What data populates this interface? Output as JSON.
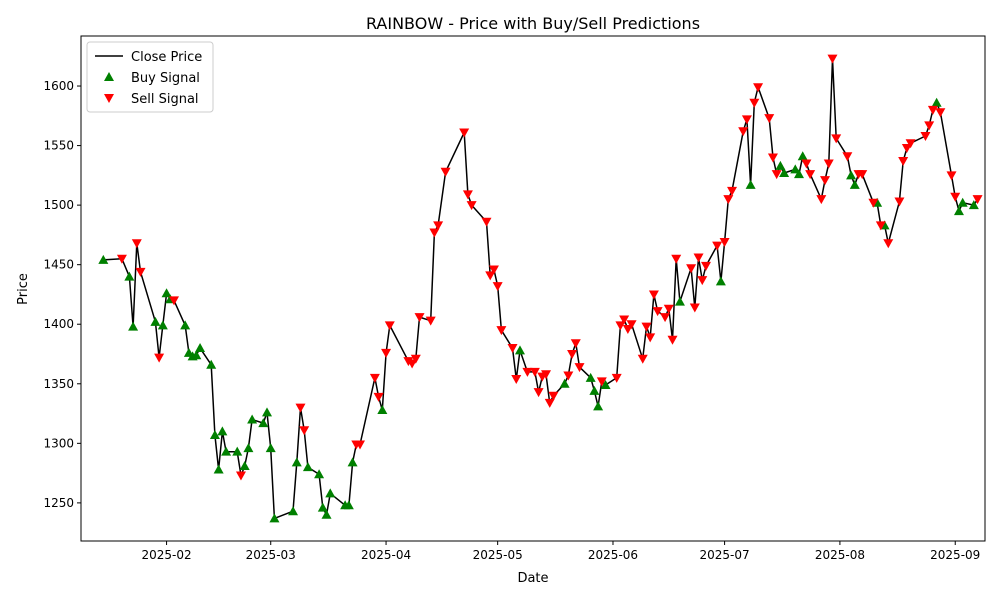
{
  "chart_data": {
    "type": "line",
    "title": "RAINBOW - Price with Buy/Sell Predictions",
    "xlabel": "Date",
    "ylabel": "Price",
    "xlim": [
      "2025-01-09",
      "2025-09-09"
    ],
    "ylim": [
      1218,
      1642
    ],
    "x_ticks": [
      "2025-02-01",
      "2025-03-01",
      "2025-04-01",
      "2025-05-01",
      "2025-06-01",
      "2025-07-01",
      "2025-08-01",
      "2025-09-01"
    ],
    "x_tick_labels": [
      "2025-02",
      "2025-03",
      "2025-04",
      "2025-05",
      "2025-06",
      "2025-07",
      "2025-08",
      "2025-09"
    ],
    "y_ticks": [
      1250,
      1300,
      1350,
      1400,
      1450,
      1500,
      1550,
      1600
    ],
    "legend": {
      "position": "top-left",
      "items": [
        {
          "label": "Close Price",
          "kind": "line",
          "color": "#000000"
        },
        {
          "label": "Buy Signal",
          "kind": "triangle-up",
          "color": "#008000"
        },
        {
          "label": "Sell Signal",
          "kind": "triangle-down",
          "color": "#ff0000"
        }
      ]
    },
    "close_series": [
      [
        "2025-01-15",
        1454
      ],
      [
        "2025-01-20",
        1455
      ],
      [
        "2025-01-22",
        1440
      ],
      [
        "2025-01-23",
        1398
      ],
      [
        "2025-01-24",
        1468
      ],
      [
        "2025-01-25",
        1444
      ],
      [
        "2025-01-29",
        1402
      ],
      [
        "2025-01-30",
        1372
      ],
      [
        "2025-01-31",
        1399
      ],
      [
        "2025-02-01",
        1426
      ],
      [
        "2025-02-02",
        1421
      ],
      [
        "2025-02-03",
        1420
      ],
      [
        "2025-02-06",
        1399
      ],
      [
        "2025-02-07",
        1376
      ],
      [
        "2025-02-08",
        1373
      ],
      [
        "2025-02-09",
        1374
      ],
      [
        "2025-02-10",
        1380
      ],
      [
        "2025-02-13",
        1366
      ],
      [
        "2025-02-14",
        1307
      ],
      [
        "2025-02-15",
        1278
      ],
      [
        "2025-02-16",
        1310
      ],
      [
        "2025-02-17",
        1293
      ],
      [
        "2025-02-20",
        1293
      ],
      [
        "2025-02-21",
        1273
      ],
      [
        "2025-02-22",
        1281
      ],
      [
        "2025-02-23",
        1296
      ],
      [
        "2025-02-24",
        1320
      ],
      [
        "2025-02-27",
        1317
      ],
      [
        "2025-02-28",
        1326
      ],
      [
        "2025-03-01",
        1296
      ],
      [
        "2025-03-02",
        1237
      ],
      [
        "2025-03-07",
        1243
      ],
      [
        "2025-03-08",
        1284
      ],
      [
        "2025-03-09",
        1330
      ],
      [
        "2025-03-10",
        1311
      ],
      [
        "2025-03-11",
        1280
      ],
      [
        "2025-03-14",
        1274
      ],
      [
        "2025-03-15",
        1246
      ],
      [
        "2025-03-16",
        1240
      ],
      [
        "2025-03-17",
        1258
      ],
      [
        "2025-03-21",
        1248
      ],
      [
        "2025-03-22",
        1248
      ],
      [
        "2025-03-23",
        1284
      ],
      [
        "2025-03-24",
        1299
      ],
      [
        "2025-03-25",
        1299
      ],
      [
        "2025-03-29",
        1355
      ],
      [
        "2025-03-30",
        1339
      ],
      [
        "2025-03-31",
        1328
      ],
      [
        "2025-04-01",
        1376
      ],
      [
        "2025-04-02",
        1399
      ],
      [
        "2025-04-07",
        1369
      ],
      [
        "2025-04-08",
        1367
      ],
      [
        "2025-04-09",
        1371
      ],
      [
        "2025-04-10",
        1406
      ],
      [
        "2025-04-13",
        1403
      ],
      [
        "2025-04-14",
        1477
      ],
      [
        "2025-04-15",
        1483
      ],
      [
        "2025-04-17",
        1528
      ],
      [
        "2025-04-22",
        1561
      ],
      [
        "2025-04-23",
        1509
      ],
      [
        "2025-04-24",
        1500
      ],
      [
        "2025-04-28",
        1486
      ],
      [
        "2025-04-29",
        1441
      ],
      [
        "2025-04-30",
        1446
      ],
      [
        "2025-05-01",
        1432
      ],
      [
        "2025-05-02",
        1395
      ],
      [
        "2025-05-05",
        1380
      ],
      [
        "2025-05-06",
        1354
      ],
      [
        "2025-05-07",
        1378
      ],
      [
        "2025-05-09",
        1360
      ],
      [
        "2025-05-11",
        1360
      ],
      [
        "2025-05-12",
        1343
      ],
      [
        "2025-05-13",
        1356
      ],
      [
        "2025-05-14",
        1358
      ],
      [
        "2025-05-15",
        1334
      ],
      [
        "2025-05-16",
        1340
      ],
      [
        "2025-05-19",
        1350
      ],
      [
        "2025-05-20",
        1357
      ],
      [
        "2025-05-21",
        1375
      ],
      [
        "2025-05-22",
        1384
      ],
      [
        "2025-05-23",
        1364
      ],
      [
        "2025-05-26",
        1355
      ],
      [
        "2025-05-27",
        1344
      ],
      [
        "2025-05-28",
        1331
      ],
      [
        "2025-05-29",
        1352
      ],
      [
        "2025-05-30",
        1349
      ],
      [
        "2025-06-02",
        1355
      ],
      [
        "2025-06-03",
        1399
      ],
      [
        "2025-06-04",
        1404
      ],
      [
        "2025-06-05",
        1396
      ],
      [
        "2025-06-06",
        1400
      ],
      [
        "2025-06-09",
        1371
      ],
      [
        "2025-06-10",
        1398
      ],
      [
        "2025-06-11",
        1389
      ],
      [
        "2025-06-12",
        1425
      ],
      [
        "2025-06-13",
        1411
      ],
      [
        "2025-06-15",
        1406
      ],
      [
        "2025-06-16",
        1413
      ],
      [
        "2025-06-17",
        1387
      ],
      [
        "2025-06-18",
        1455
      ],
      [
        "2025-06-19",
        1419
      ],
      [
        "2025-06-22",
        1447
      ],
      [
        "2025-06-23",
        1414
      ],
      [
        "2025-06-24",
        1456
      ],
      [
        "2025-06-25",
        1437
      ],
      [
        "2025-06-26",
        1449
      ],
      [
        "2025-06-29",
        1466
      ],
      [
        "2025-06-30",
        1436
      ],
      [
        "2025-07-01",
        1469
      ],
      [
        "2025-07-02",
        1505
      ],
      [
        "2025-07-03",
        1512
      ],
      [
        "2025-07-06",
        1562
      ],
      [
        "2025-07-07",
        1572
      ],
      [
        "2025-07-08",
        1517
      ],
      [
        "2025-07-09",
        1586
      ],
      [
        "2025-07-10",
        1599
      ],
      [
        "2025-07-13",
        1573
      ],
      [
        "2025-07-14",
        1540
      ],
      [
        "2025-07-15",
        1526
      ],
      [
        "2025-07-16",
        1533
      ],
      [
        "2025-07-17",
        1527
      ],
      [
        "2025-07-20",
        1530
      ],
      [
        "2025-07-21",
        1526
      ],
      [
        "2025-07-22",
        1541
      ],
      [
        "2025-07-23",
        1535
      ],
      [
        "2025-07-24",
        1526
      ],
      [
        "2025-07-27",
        1505
      ],
      [
        "2025-07-28",
        1521
      ],
      [
        "2025-07-29",
        1535
      ],
      [
        "2025-07-30",
        1623
      ],
      [
        "2025-07-31",
        1556
      ],
      [
        "2025-08-03",
        1541
      ],
      [
        "2025-08-04",
        1525
      ],
      [
        "2025-08-05",
        1517
      ],
      [
        "2025-08-06",
        1526
      ],
      [
        "2025-08-07",
        1526
      ],
      [
        "2025-08-10",
        1502
      ],
      [
        "2025-08-11",
        1502
      ],
      [
        "2025-08-12",
        1483
      ],
      [
        "2025-08-13",
        1483
      ],
      [
        "2025-08-14",
        1468
      ],
      [
        "2025-08-17",
        1503
      ],
      [
        "2025-08-18",
        1537
      ],
      [
        "2025-08-19",
        1548
      ],
      [
        "2025-08-20",
        1552
      ],
      [
        "2025-08-24",
        1558
      ],
      [
        "2025-08-25",
        1567
      ],
      [
        "2025-08-26",
        1580
      ],
      [
        "2025-08-27",
        1586
      ],
      [
        "2025-08-28",
        1578
      ],
      [
        "2025-08-31",
        1525
      ],
      [
        "2025-09-01",
        1507
      ],
      [
        "2025-09-02",
        1495
      ],
      [
        "2025-09-03",
        1502
      ],
      [
        "2025-09-06",
        1500
      ],
      [
        "2025-09-07",
        1505
      ]
    ],
    "buy_signals": [
      [
        "2025-01-15",
        1454
      ],
      [
        "2025-01-22",
        1440
      ],
      [
        "2025-01-23",
        1398
      ],
      [
        "2025-01-29",
        1402
      ],
      [
        "2025-01-31",
        1399
      ],
      [
        "2025-02-01",
        1426
      ],
      [
        "2025-02-02",
        1421
      ],
      [
        "2025-02-06",
        1399
      ],
      [
        "2025-02-07",
        1376
      ],
      [
        "2025-02-08",
        1373
      ],
      [
        "2025-02-09",
        1374
      ],
      [
        "2025-02-10",
        1380
      ],
      [
        "2025-02-13",
        1366
      ],
      [
        "2025-02-14",
        1307
      ],
      [
        "2025-02-15",
        1278
      ],
      [
        "2025-02-16",
        1310
      ],
      [
        "2025-02-17",
        1293
      ],
      [
        "2025-02-20",
        1293
      ],
      [
        "2025-02-22",
        1281
      ],
      [
        "2025-02-23",
        1296
      ],
      [
        "2025-02-24",
        1320
      ],
      [
        "2025-02-27",
        1317
      ],
      [
        "2025-02-28",
        1326
      ],
      [
        "2025-03-01",
        1296
      ],
      [
        "2025-03-02",
        1237
      ],
      [
        "2025-03-07",
        1243
      ],
      [
        "2025-03-08",
        1284
      ],
      [
        "2025-03-11",
        1280
      ],
      [
        "2025-03-14",
        1274
      ],
      [
        "2025-03-15",
        1246
      ],
      [
        "2025-03-16",
        1240
      ],
      [
        "2025-03-17",
        1258
      ],
      [
        "2025-03-21",
        1248
      ],
      [
        "2025-03-22",
        1248
      ],
      [
        "2025-03-23",
        1284
      ],
      [
        "2025-03-31",
        1328
      ],
      [
        "2025-05-07",
        1378
      ],
      [
        "2025-05-19",
        1350
      ],
      [
        "2025-05-26",
        1355
      ],
      [
        "2025-05-27",
        1344
      ],
      [
        "2025-05-28",
        1331
      ],
      [
        "2025-05-30",
        1349
      ],
      [
        "2025-06-19",
        1419
      ],
      [
        "2025-06-30",
        1436
      ],
      [
        "2025-07-08",
        1517
      ],
      [
        "2025-07-16",
        1533
      ],
      [
        "2025-07-17",
        1527
      ],
      [
        "2025-07-20",
        1530
      ],
      [
        "2025-07-21",
        1526
      ],
      [
        "2025-07-22",
        1541
      ],
      [
        "2025-08-04",
        1525
      ],
      [
        "2025-08-05",
        1517
      ],
      [
        "2025-08-11",
        1502
      ],
      [
        "2025-08-13",
        1483
      ],
      [
        "2025-08-27",
        1586
      ],
      [
        "2025-09-02",
        1495
      ],
      [
        "2025-09-03",
        1502
      ],
      [
        "2025-09-06",
        1500
      ]
    ],
    "sell_signals": [
      [
        "2025-01-20",
        1455
      ],
      [
        "2025-01-24",
        1468
      ],
      [
        "2025-01-25",
        1444
      ],
      [
        "2025-01-30",
        1372
      ],
      [
        "2025-02-03",
        1420
      ],
      [
        "2025-02-21",
        1273
      ],
      [
        "2025-03-09",
        1330
      ],
      [
        "2025-03-10",
        1311
      ],
      [
        "2025-03-24",
        1299
      ],
      [
        "2025-03-25",
        1299
      ],
      [
        "2025-03-29",
        1355
      ],
      [
        "2025-03-30",
        1339
      ],
      [
        "2025-04-01",
        1376
      ],
      [
        "2025-04-02",
        1399
      ],
      [
        "2025-04-07",
        1369
      ],
      [
        "2025-04-08",
        1367
      ],
      [
        "2025-04-09",
        1371
      ],
      [
        "2025-04-10",
        1406
      ],
      [
        "2025-04-13",
        1403
      ],
      [
        "2025-04-14",
        1477
      ],
      [
        "2025-04-15",
        1483
      ],
      [
        "2025-04-17",
        1528
      ],
      [
        "2025-04-22",
        1561
      ],
      [
        "2025-04-23",
        1509
      ],
      [
        "2025-04-24",
        1500
      ],
      [
        "2025-04-28",
        1486
      ],
      [
        "2025-04-29",
        1441
      ],
      [
        "2025-04-30",
        1446
      ],
      [
        "2025-05-01",
        1432
      ],
      [
        "2025-05-02",
        1395
      ],
      [
        "2025-05-05",
        1380
      ],
      [
        "2025-05-06",
        1354
      ],
      [
        "2025-05-09",
        1360
      ],
      [
        "2025-05-11",
        1360
      ],
      [
        "2025-05-12",
        1343
      ],
      [
        "2025-05-13",
        1356
      ],
      [
        "2025-05-14",
        1358
      ],
      [
        "2025-05-15",
        1334
      ],
      [
        "2025-05-16",
        1340
      ],
      [
        "2025-05-20",
        1357
      ],
      [
        "2025-05-21",
        1375
      ],
      [
        "2025-05-22",
        1384
      ],
      [
        "2025-05-23",
        1364
      ],
      [
        "2025-05-29",
        1352
      ],
      [
        "2025-06-02",
        1355
      ],
      [
        "2025-06-03",
        1399
      ],
      [
        "2025-06-04",
        1404
      ],
      [
        "2025-06-05",
        1396
      ],
      [
        "2025-06-06",
        1400
      ],
      [
        "2025-06-09",
        1371
      ],
      [
        "2025-06-10",
        1398
      ],
      [
        "2025-06-11",
        1389
      ],
      [
        "2025-06-12",
        1425
      ],
      [
        "2025-06-13",
        1411
      ],
      [
        "2025-06-15",
        1406
      ],
      [
        "2025-06-16",
        1413
      ],
      [
        "2025-06-17",
        1387
      ],
      [
        "2025-06-18",
        1455
      ],
      [
        "2025-06-22",
        1447
      ],
      [
        "2025-06-23",
        1414
      ],
      [
        "2025-06-24",
        1456
      ],
      [
        "2025-06-25",
        1437
      ],
      [
        "2025-06-26",
        1449
      ],
      [
        "2025-06-29",
        1466
      ],
      [
        "2025-07-01",
        1469
      ],
      [
        "2025-07-02",
        1505
      ],
      [
        "2025-07-03",
        1512
      ],
      [
        "2025-07-06",
        1562
      ],
      [
        "2025-07-07",
        1572
      ],
      [
        "2025-07-09",
        1586
      ],
      [
        "2025-07-10",
        1599
      ],
      [
        "2025-07-13",
        1573
      ],
      [
        "2025-07-14",
        1540
      ],
      [
        "2025-07-15",
        1526
      ],
      [
        "2025-07-23",
        1535
      ],
      [
        "2025-07-24",
        1526
      ],
      [
        "2025-07-27",
        1505
      ],
      [
        "2025-07-28",
        1521
      ],
      [
        "2025-07-29",
        1535
      ],
      [
        "2025-07-30",
        1623
      ],
      [
        "2025-07-31",
        1556
      ],
      [
        "2025-08-03",
        1541
      ],
      [
        "2025-08-06",
        1526
      ],
      [
        "2025-08-07",
        1526
      ],
      [
        "2025-08-10",
        1502
      ],
      [
        "2025-08-12",
        1483
      ],
      [
        "2025-08-14",
        1468
      ],
      [
        "2025-08-17",
        1503
      ],
      [
        "2025-08-18",
        1537
      ],
      [
        "2025-08-19",
        1548
      ],
      [
        "2025-08-20",
        1552
      ],
      [
        "2025-08-24",
        1558
      ],
      [
        "2025-08-25",
        1567
      ],
      [
        "2025-08-26",
        1580
      ],
      [
        "2025-08-28",
        1578
      ],
      [
        "2025-08-31",
        1525
      ],
      [
        "2025-09-01",
        1507
      ],
      [
        "2025-09-07",
        1505
      ]
    ]
  }
}
